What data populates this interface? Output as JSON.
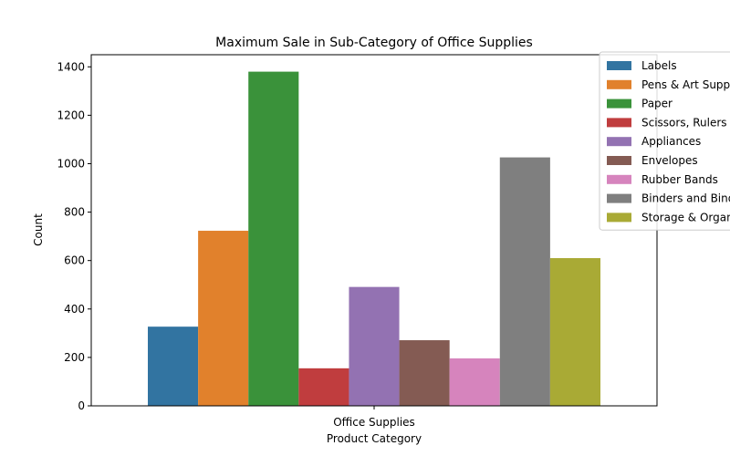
{
  "chart_data": {
    "type": "bar",
    "title": "Maximum Sale in Sub-Category of Office Supplies",
    "xlabel": "Product Category",
    "ylabel": "Count",
    "categories": [
      "Office Supplies"
    ],
    "ylim": [
      0,
      1450
    ],
    "yticks": [
      0,
      200,
      400,
      600,
      800,
      1000,
      1200,
      1400
    ],
    "legend_position": "top-right, outside plot",
    "grid": false,
    "series": [
      {
        "name": "Labels",
        "values": [
          327
        ],
        "color": "#3274a1"
      },
      {
        "name": "Pens & Art Supplies",
        "values": [
          723
        ],
        "color": "#e1812c"
      },
      {
        "name": "Paper",
        "values": [
          1380
        ],
        "color": "#3a923a"
      },
      {
        "name": "Scissors, Rulers and Trimmers",
        "values": [
          155
        ],
        "color": "#c03d3e"
      },
      {
        "name": "Appliances",
        "values": [
          491
        ],
        "color": "#9372b2"
      },
      {
        "name": "Envelopes",
        "values": [
          271
        ],
        "color": "#845b53"
      },
      {
        "name": "Rubber Bands",
        "values": [
          196
        ],
        "color": "#d684bd"
      },
      {
        "name": "Binders and Binder Accessories",
        "values": [
          1026
        ],
        "color": "#7f7f7f"
      },
      {
        "name": "Storage & Organization",
        "values": [
          610
        ],
        "color": "#a9aa35"
      }
    ]
  }
}
